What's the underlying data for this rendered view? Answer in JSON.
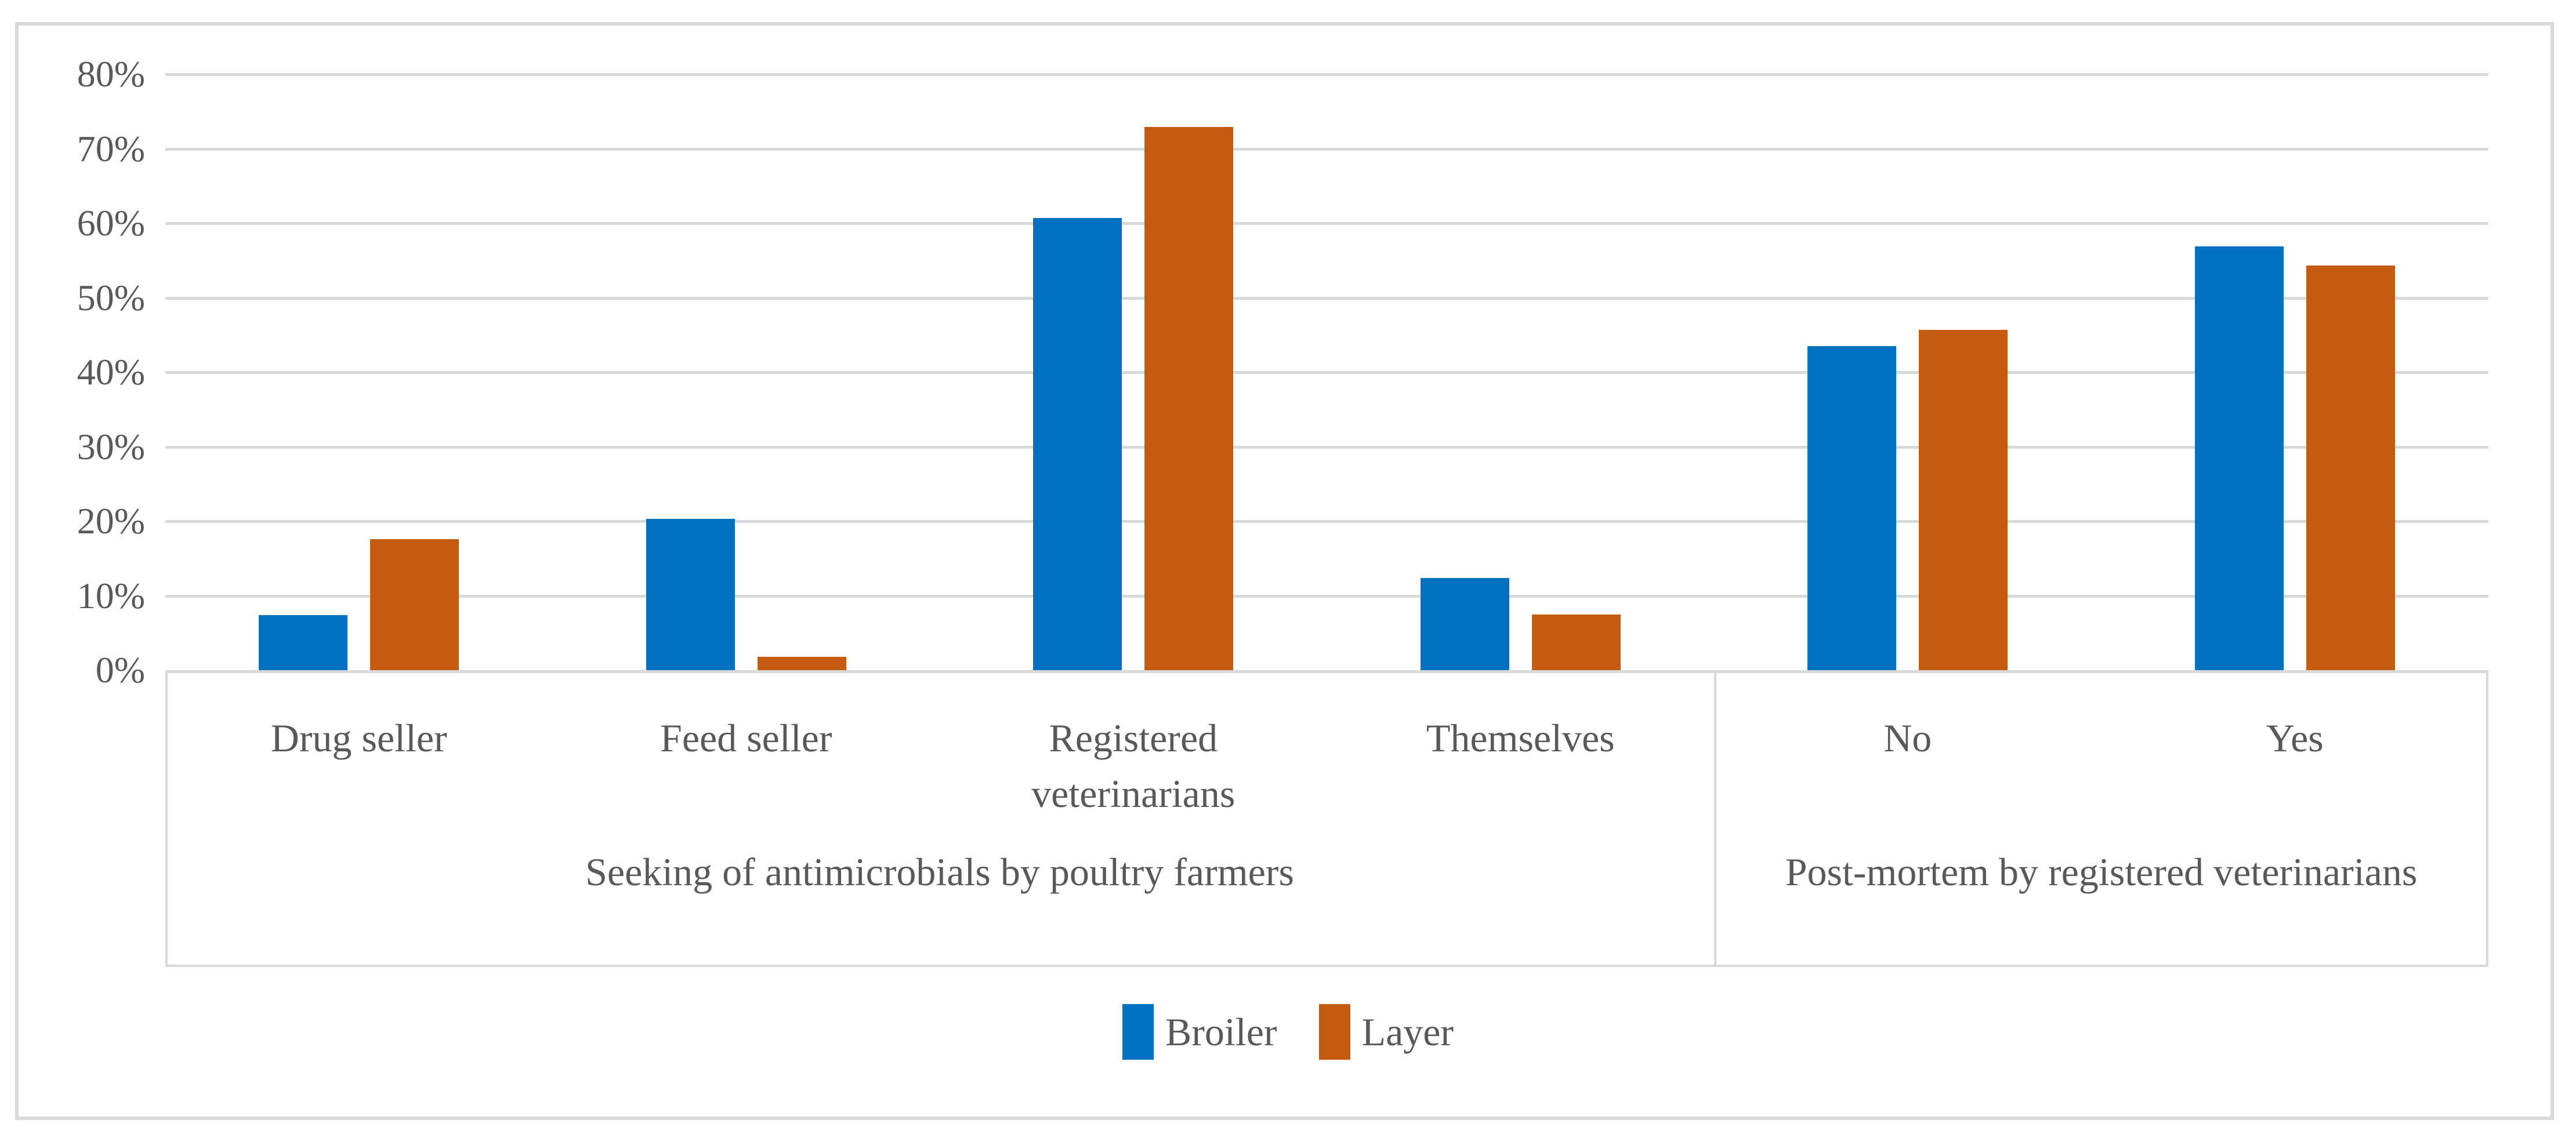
{
  "chart_data": {
    "type": "bar",
    "title": "",
    "xlabel": "",
    "ylabel": "",
    "y_axis": {
      "ylim": [
        0,
        80
      ],
      "tick_step": 10,
      "tick_labels": [
        "0%",
        "10%",
        "20%",
        "30%",
        "40%",
        "50%",
        "60%",
        "70%",
        "80%"
      ],
      "grid": true
    },
    "categories": [
      "Drug seller",
      "Feed seller",
      "Registered veterinarians",
      "Themselves",
      "No",
      "Yes"
    ],
    "groups": [
      {
        "label": "Seeking of antimicrobials by poultry farmers",
        "categories": [
          "Drug seller",
          "Feed seller",
          "Registered veterinarians",
          "Themselves"
        ],
        "span": 4
      },
      {
        "label": "Post-mortem by registered veterinarians",
        "categories": [
          "No",
          "Yes"
        ],
        "span": 2
      }
    ],
    "series": [
      {
        "name": "Broiler",
        "color": "#0070C0",
        "values": [
          7.4,
          20.3,
          60.7,
          12.4,
          43.5,
          56.9
        ]
      },
      {
        "name": "Layer",
        "color": "#C55A11",
        "values": [
          17.6,
          1.8,
          72.9,
          7.5,
          45.7,
          54.3
        ]
      }
    ],
    "values_unit": "%",
    "legend": {
      "position": "bottom",
      "entries": [
        "Broiler",
        "Layer"
      ]
    }
  },
  "colors": {
    "series_broiler": "#0070C0",
    "series_layer": "#C55A11",
    "gridline": "#D9D9D9",
    "figure_border": "#D9D9D9",
    "text": "#595959",
    "background": "#FFFFFF"
  }
}
